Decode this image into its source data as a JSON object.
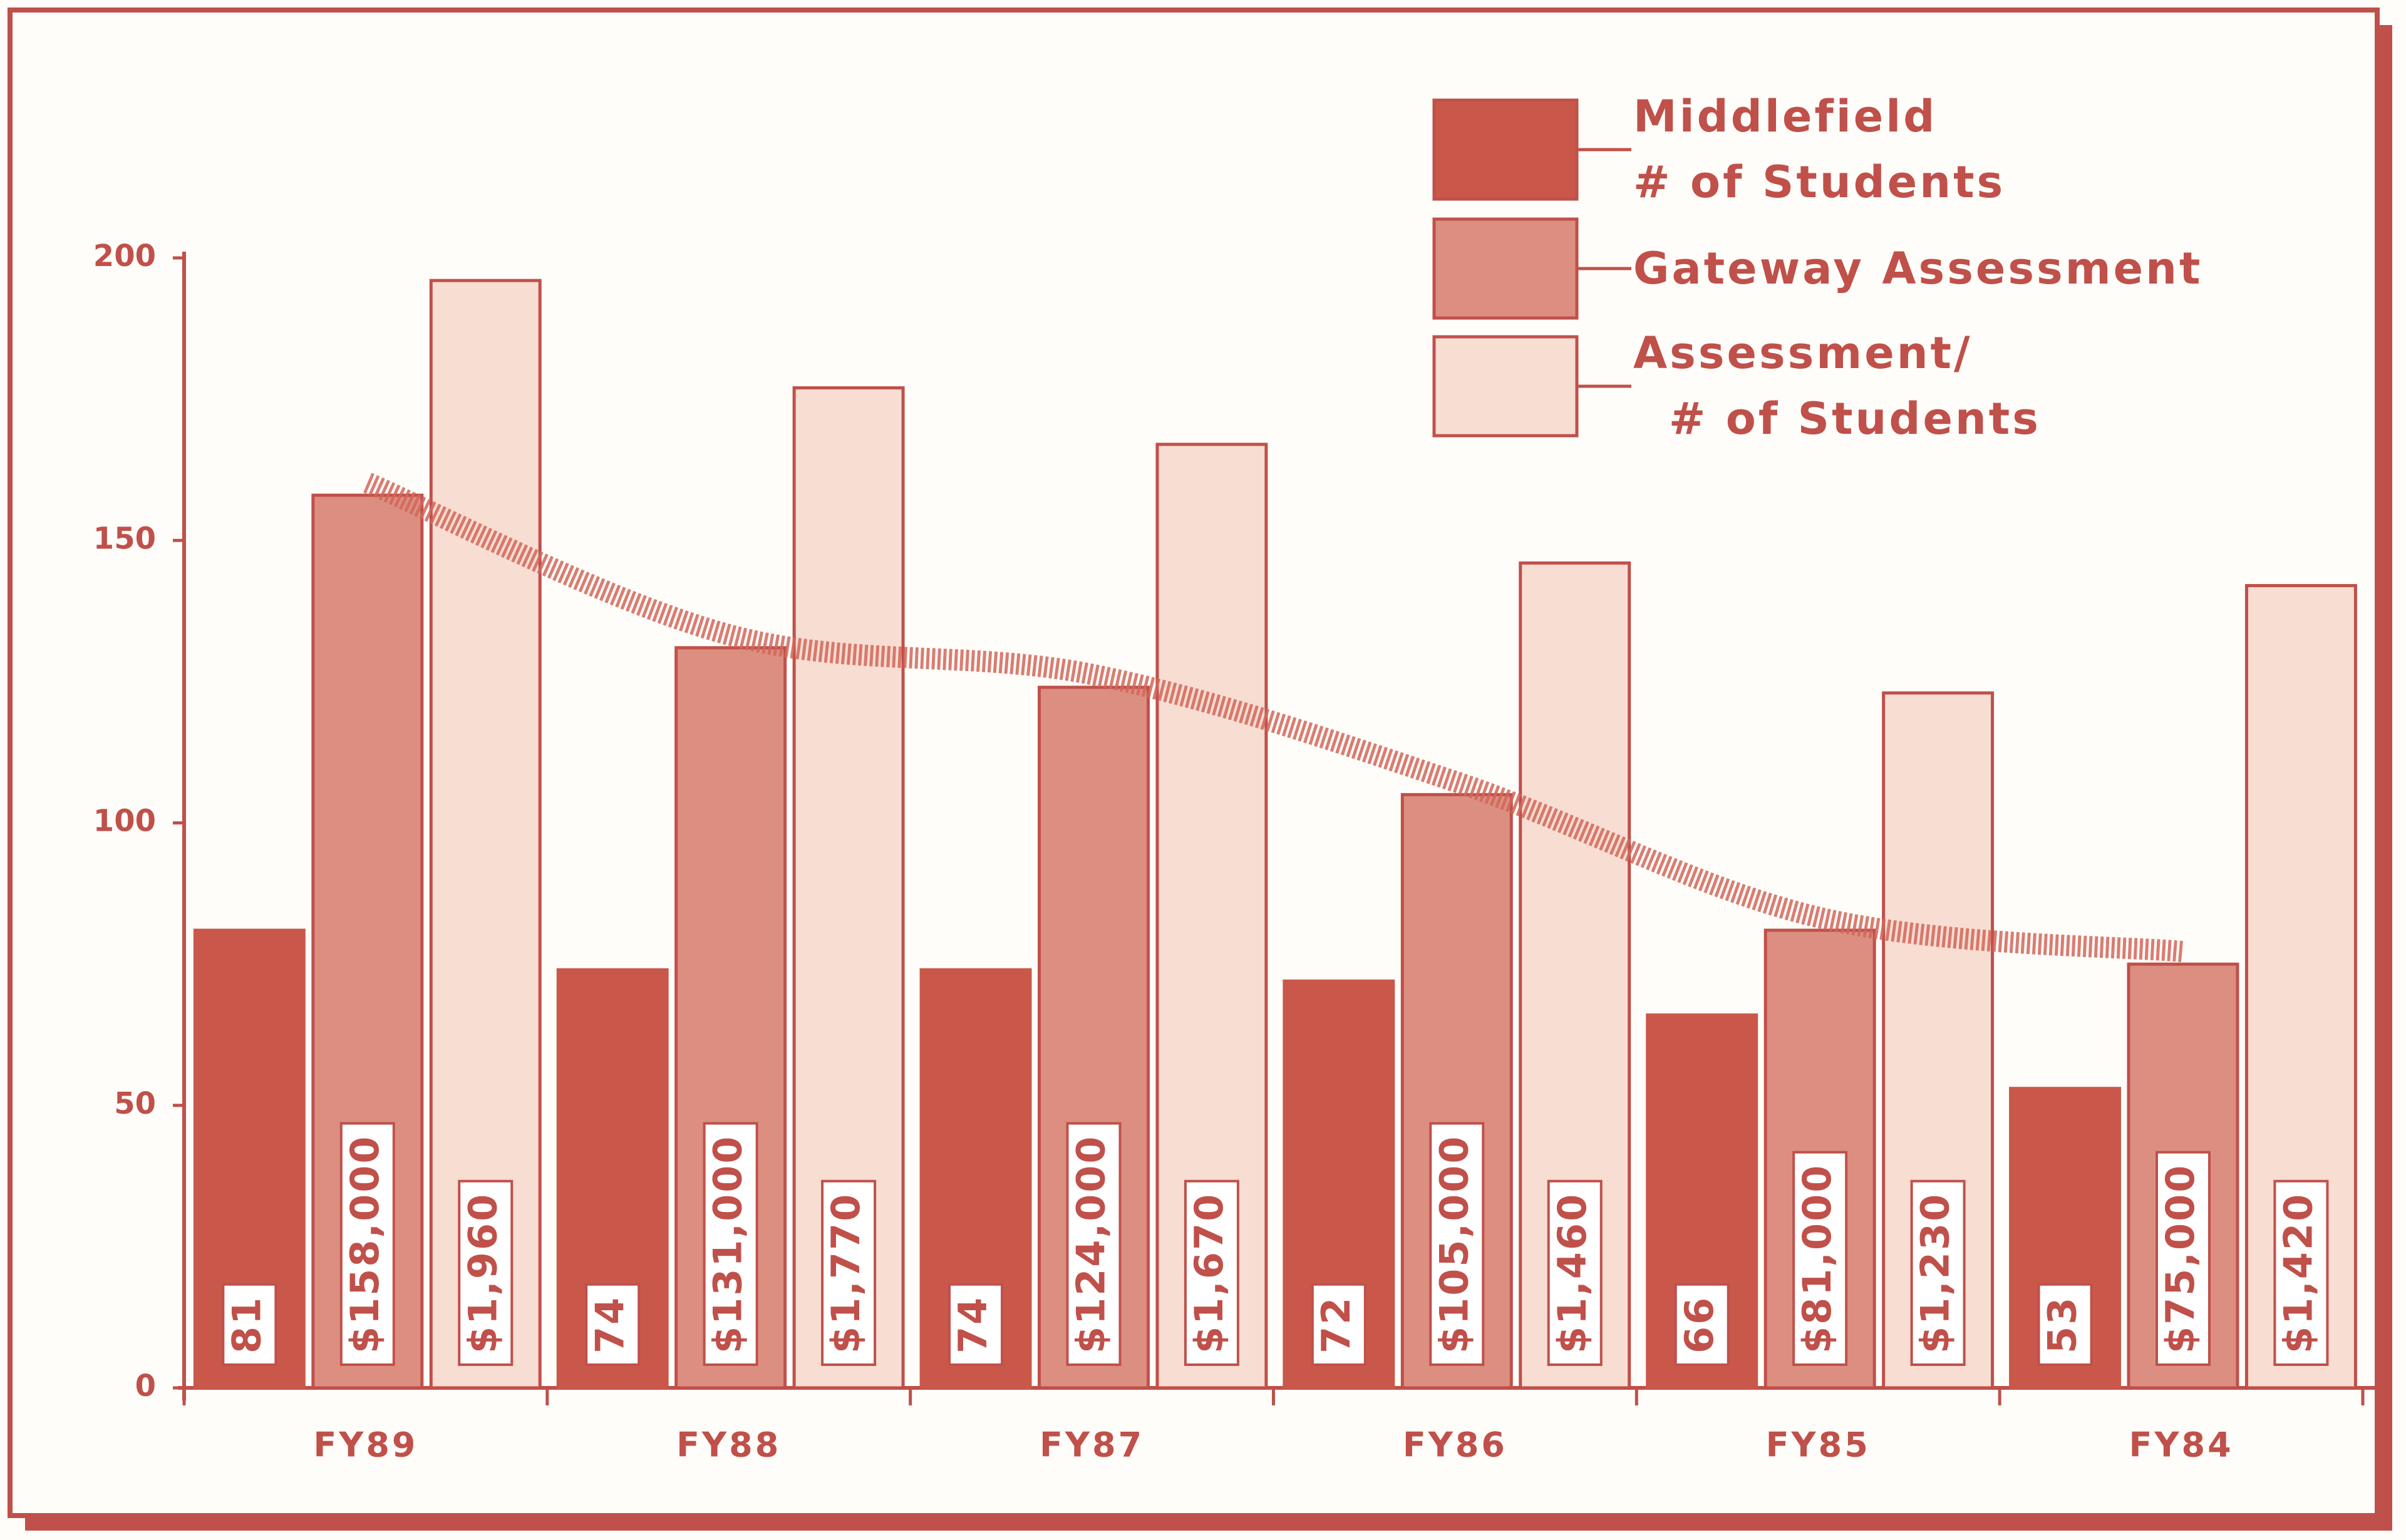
{
  "chart_data": {
    "type": "bar",
    "categories": [
      "FY89",
      "FY88",
      "FY87",
      "FY86",
      "FY85",
      "FY84"
    ],
    "series": [
      {
        "name": "Middlefield\n# of Students",
        "color": "#c9584a",
        "values": [
          81,
          74,
          74,
          72,
          66,
          53
        ],
        "value_labels": [
          "81",
          "74",
          "74",
          "72",
          "66",
          "53"
        ]
      },
      {
        "name": "Gateway Assessment",
        "color": "#dc8f80",
        "values": [
          158,
          131,
          124,
          105,
          81,
          75
        ],
        "value_labels": [
          "$158,000",
          "$131,000",
          "$124,000",
          "$105,000",
          "$81,000",
          "$75,000"
        ]
      },
      {
        "name": "Assessment/\n  # of Students",
        "color": "#f7ddd2",
        "values": [
          196,
          177,
          167,
          146,
          123,
          142
        ],
        "value_labels": [
          "$1,960",
          "$1,770",
          "$1,670",
          "$1,460",
          "$1,230",
          "$1,420"
        ]
      }
    ],
    "trend_color": "#d2665a",
    "ylim": [
      0,
      200
    ],
    "yticks": [
      0,
      50,
      100,
      150,
      200
    ],
    "legend": "top-right"
  }
}
